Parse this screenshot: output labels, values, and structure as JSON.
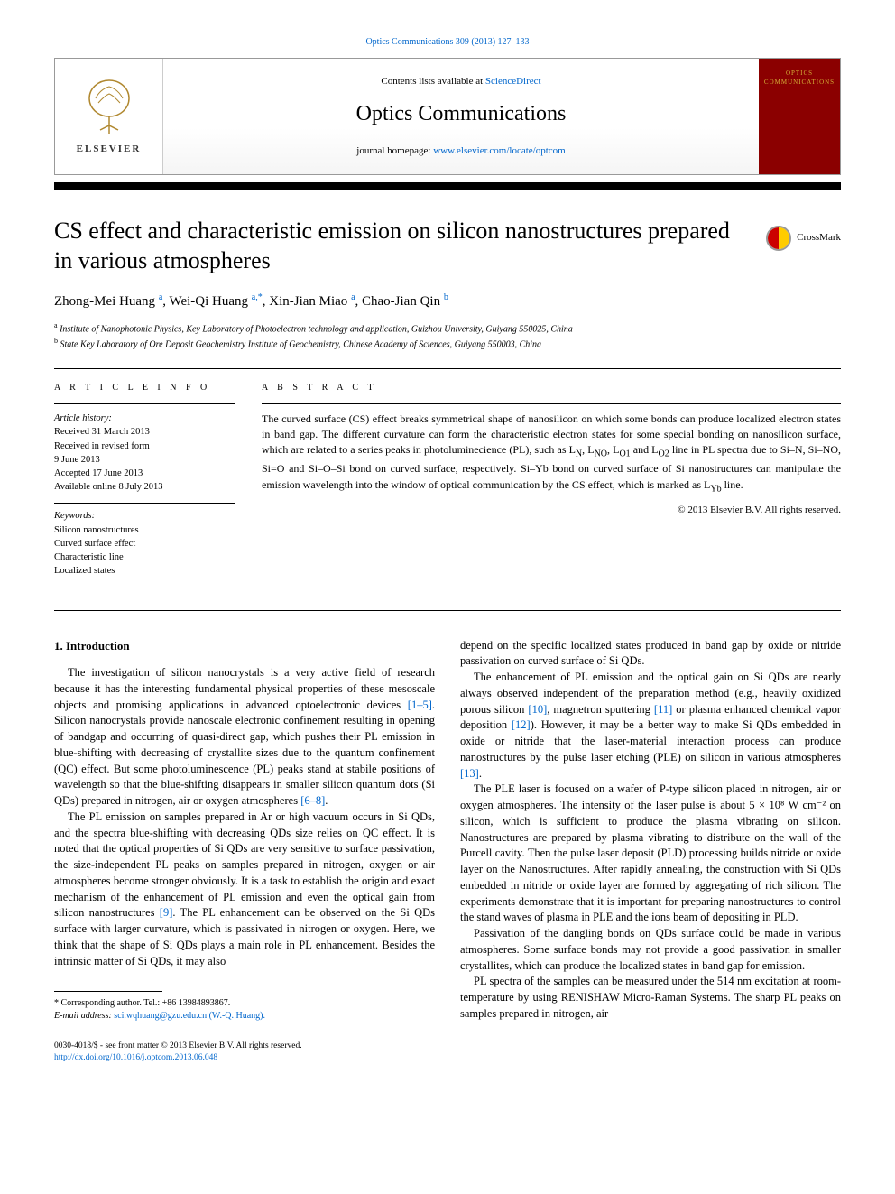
{
  "colors": {
    "link": "#0066cc",
    "text": "#000000",
    "bg": "#ffffff",
    "cover_bg": "#8b0000",
    "cover_text": "#d4af37",
    "crossmark_left": "#cc0000",
    "crossmark_right": "#ffcc00",
    "border": "#999999"
  },
  "header": {
    "contents_prefix": "Contents lists available at ",
    "contents_link": "ScienceDirect",
    "journal_name": "Optics Communications",
    "homepage_prefix": "journal homepage: ",
    "homepage_url": "www.elsevier.com/locate/optcom",
    "elsevier_label": "ELSEVIER",
    "cover_line1": "OPTICS",
    "cover_line2": "COMMUNICATIONS"
  },
  "running_head": "Optics Communications 309 (2013) 127–133",
  "title": "CS effect and characteristic emission on silicon nanostructures prepared in various atmospheres",
  "crossmark_label": "CrossMark",
  "authors": [
    {
      "name": "Zhong-Mei Huang",
      "sup": "a"
    },
    {
      "name": "Wei-Qi Huang",
      "sup": "a,*"
    },
    {
      "name": "Xin-Jian Miao",
      "sup": "a"
    },
    {
      "name": "Chao-Jian Qin",
      "sup": "b"
    }
  ],
  "affiliations": [
    {
      "sup": "a",
      "text": "Institute of Nanophotonic Physics, Key Laboratory of Photoelectron technology and application, Guizhou University, Guiyang 550025, China"
    },
    {
      "sup": "b",
      "text": "State Key Laboratory of Ore Deposit Geochemistry Institute of Geochemistry, Chinese Academy of Sciences, Guiyang 550003, China"
    }
  ],
  "article_info": {
    "heading": "A R T I C L E  I N F O",
    "history_label": "Article history:",
    "history": [
      "Received 31 March 2013",
      "Received in revised form",
      "9 June 2013",
      "Accepted 17 June 2013",
      "Available online 8 July 2013"
    ],
    "keywords_label": "Keywords:",
    "keywords": [
      "Silicon nanostructures",
      "Curved surface effect",
      "Characteristic line",
      "Localized states"
    ]
  },
  "abstract": {
    "heading": "A B S T R A C T",
    "text": "The curved surface (CS) effect breaks symmetrical shape of nanosilicon on which some bonds can produce localized electron states in band gap. The different curvature can form the characteristic electron states for some special bonding on nanosilicon surface, which are related to a series peaks in photoluminecience (PL), such as L_N, L_NO, L_O1 and L_O2 line in PL spectra due to Si–N, Si–NO, Si=O and Si–O–Si bond on curved surface, respectively. Si–Yb bond on curved surface of Si nanostructures can manipulate the emission wavelength into the window of optical communication by the CS effect, which is marked as L_Yb line.",
    "copyright": "© 2013 Elsevier B.V. All rights reserved."
  },
  "body": {
    "section1_heading": "1.  Introduction",
    "col1": [
      "The investigation of silicon nanocrystals is a very active field of research because it has the interesting fundamental physical properties of these mesoscale objects and promising applications in advanced optoelectronic devices [1–5]. Silicon nanocrystals provide nanoscale electronic confinement resulting in opening of bandgap and occurring of quasi-direct gap, which pushes their PL emission in blue-shifting with decreasing of crystallite sizes due to the quantum confinement (QC) effect. But some photoluminescence (PL) peaks stand at stabile positions of wavelength so that the blue-shifting disappears in smaller silicon quantum dots (Si QDs) prepared in nitrogen, air or oxygen atmospheres [6–8].",
      "The PL emission on samples prepared in Ar or high vacuum occurs in Si QDs, and the spectra blue-shifting with decreasing QDs size relies on QC effect. It is noted that the optical properties of Si QDs are very sensitive to surface passivation, the size-independent PL peaks on samples prepared in nitrogen, oxygen or air atmospheres become stronger obviously. It is a task to establish the origin and exact mechanism of the enhancement of PL emission and even the optical gain from silicon nanostructures [9]. The PL enhancement can be observed on the Si QDs surface with larger curvature, which is passivated in nitrogen or oxygen. Here, we think that the shape of Si QDs plays a main role in PL enhancement. Besides the intrinsic matter of Si QDs, it may also"
    ],
    "col2": [
      "depend on the specific localized states produced in band gap by oxide or nitride passivation on curved surface of Si QDs.",
      "The enhancement of PL emission and the optical gain on Si QDs are nearly always observed independent of the preparation method (e.g., heavily oxidized porous silicon [10], magnetron sputtering [11] or plasma enhanced chemical vapor deposition [12]). However, it may be a better way to make Si QDs embedded in oxide or nitride that the laser-material interaction process can produce nanostructures by the pulse laser etching (PLE) on silicon in various atmospheres [13].",
      "The PLE laser is focused on a wafer of P-type silicon placed in nitrogen, air or oxygen atmospheres. The intensity of the laser pulse is about 5 × 10⁸ W cm⁻² on silicon, which is sufficient to produce the plasma vibrating on silicon. Nanostructures are prepared by plasma vibrating to distribute on the wall of the Purcell cavity. Then the pulse laser deposit (PLD) processing builds nitride or oxide layer on the Nanostructures. After rapidly annealing, the construction with Si QDs embedded in nitride or oxide layer are formed by aggregating of rich silicon. The experiments demonstrate that it is important for preparing nanostructures to control the stand waves of plasma in PLE and the ions beam of depositing in PLD.",
      "Passivation of the dangling bonds on QDs surface could be made in various atmospheres. Some surface bonds may not provide a good passivation in smaller crystallites, which can produce the localized states in band gap for emission.",
      "PL spectra of the samples can be measured under the 514 nm excitation at room-temperature by using RENISHAW Micro-Raman Systems. The sharp PL peaks on samples prepared in nitrogen, air"
    ]
  },
  "footnotes": {
    "corresponding": "* Corresponding author. Tel.: +86 13984893867.",
    "email_label": "E-mail address: ",
    "email": "sci.wqhuang@gzu.edu.cn (W.-Q. Huang)."
  },
  "bottom": {
    "issn": "0030-4018/$ - see front matter © 2013 Elsevier B.V. All rights reserved.",
    "doi": "http://dx.doi.org/10.1016/j.optcom.2013.06.048"
  }
}
